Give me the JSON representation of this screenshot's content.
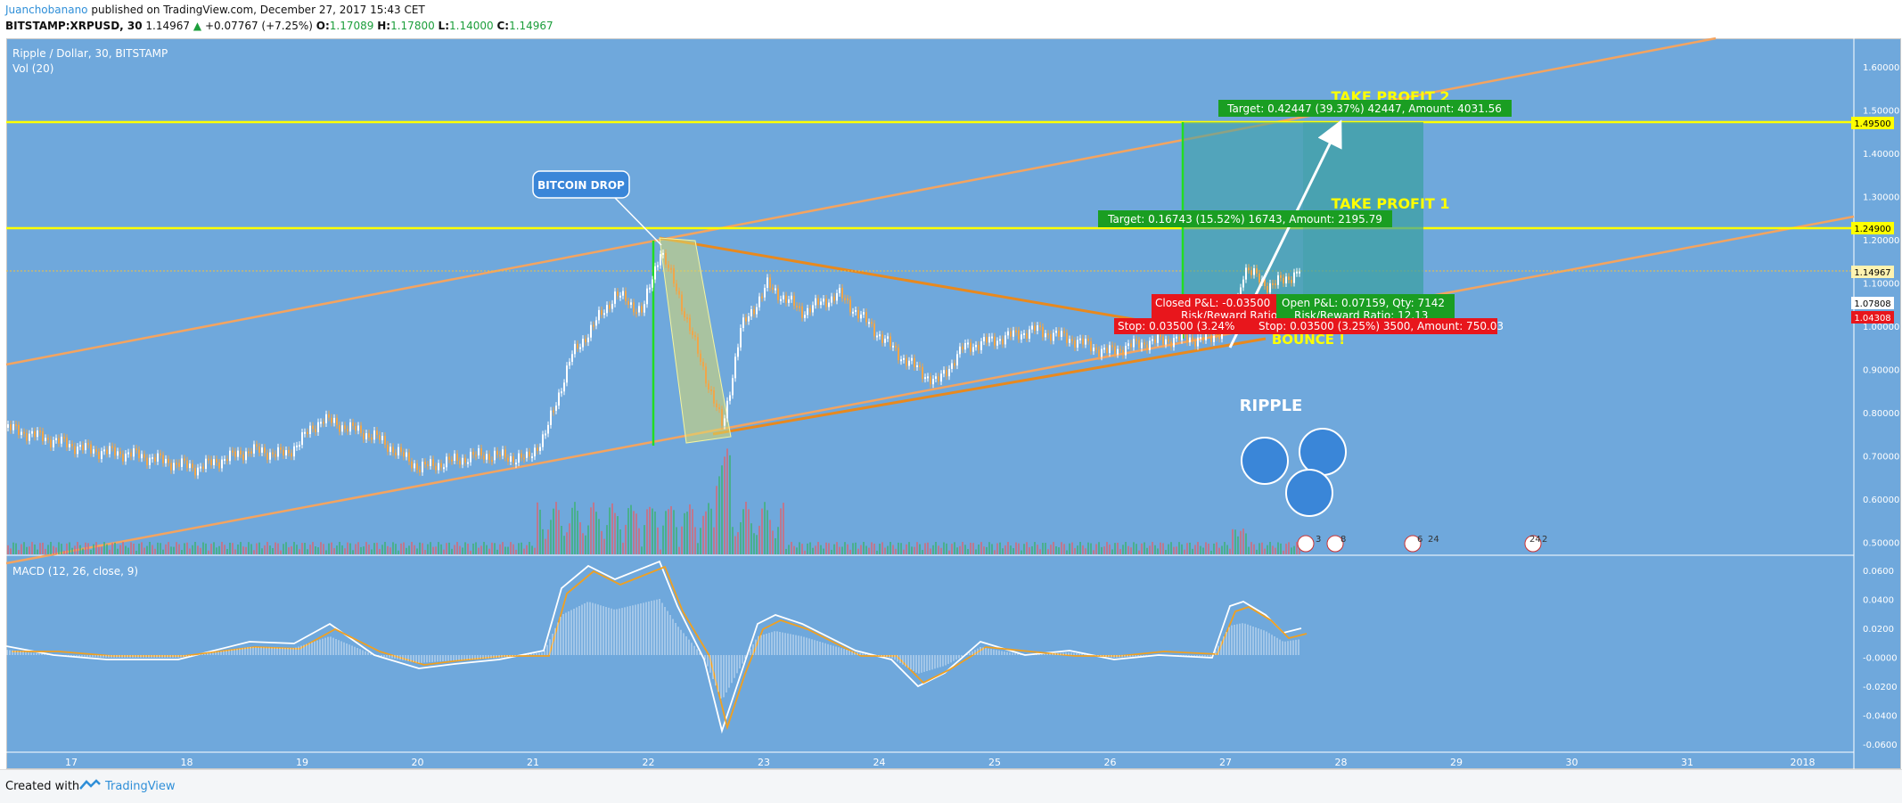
{
  "header": {
    "author": "Juanchobanano",
    "published": "published on TradingView.com, December 27, 2017 15:43 CET",
    "symbol": "BITSTAMP:XRPUSD, 30",
    "last": "1.14967",
    "change": "+0.07767 (+7.25%)",
    "o_label": "O:",
    "o": "1.17089",
    "h_label": "H:",
    "h": "1.17800",
    "l_label": "L:",
    "l": "1.14000",
    "c_label": "C:",
    "c": "1.14967"
  },
  "chart": {
    "title": "Ripple / Dollar, 30, BITSTAMP",
    "vol": "Vol (20)",
    "macd": "MACD (12, 26, close, 9)",
    "price_axis": [
      "1.60000",
      "1.50000",
      "1.40000",
      "1.30000",
      "1.20000",
      "1.10000",
      "1.00000",
      "0.90000",
      "0.80000",
      "0.70000",
      "0.60000",
      "0.50000"
    ],
    "macd_axis": [
      "0.0600",
      "0.0400",
      "0.0200",
      "-0.0000",
      "-0.0200",
      "-0.0400",
      "-0.0600"
    ],
    "date_axis": [
      "17",
      "18",
      "19",
      "20",
      "21",
      "22",
      "23",
      "24",
      "25",
      "26",
      "27",
      "28",
      "29",
      "30",
      "31",
      "2018"
    ],
    "tags": {
      "tp2": "1.49500",
      "tp1": "1.24900",
      "last": "1.14967",
      "entry": "1.07808",
      "stop": "1.04308"
    },
    "annotations": {
      "bitcoin_drop": "BITCOIN DROP",
      "take_profit_2": "TAKE PROFIT 2",
      "take_profit_1": "TAKE PROFIT 1",
      "target2": "Target: 0.42447 (39.37%) 42447, Amount: 4031.56",
      "target1": "Target: 0.16743 (15.52%) 16743, Amount: 2195.79",
      "closed_pl": "Closed P&L: -0.03500",
      "rr_left": "Risk/Reward Ratio:",
      "open_pl": "Open P&L: 0.07159, Qty: 7142",
      "rr_right": "Risk/Reward Ratio: 12.13",
      "stop_left": "Stop: 0.03500 (3.24%",
      "stop_right": "Stop: 0.03500 (3.25%) 3500, Amount: 750.03",
      "bounce": "BOUNCE !",
      "ripple": "RIPPLE"
    },
    "events": [
      "3",
      "8",
      "6",
      "24",
      "24",
      "2"
    ]
  },
  "footer": {
    "created": "Created with",
    "brand": "TradingView"
  },
  "colors": {
    "bg": "#6fa8dc",
    "up": "#ffffff",
    "down": "#f0a64a",
    "channel": "#f4a460",
    "yellow": "#ffff00",
    "target": "#1a9e22",
    "stop": "#e8161c"
  }
}
